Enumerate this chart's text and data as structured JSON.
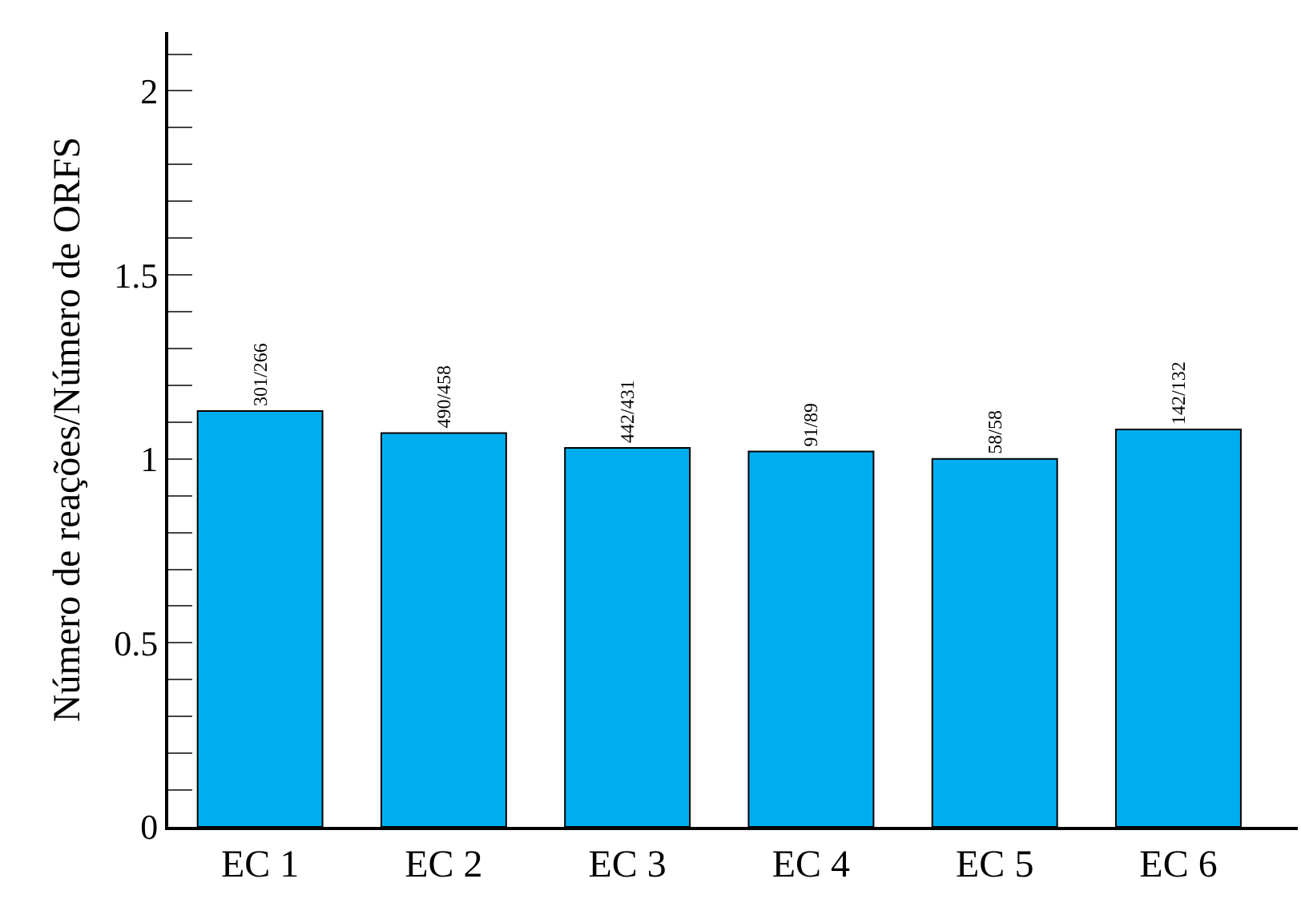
{
  "chart_data": {
    "type": "bar",
    "ylabel": "Número de reações/Número de ORFS",
    "categories": [
      "EC 1",
      "EC 2",
      "EC 3",
      "EC 4",
      "EC 5",
      "EC 6"
    ],
    "values": [
      1.13,
      1.07,
      1.03,
      1.02,
      1.0,
      1.08
    ],
    "value_labels": [
      "301/266",
      "490/458",
      "442/431",
      "91/89",
      "58/58",
      "142/132"
    ],
    "color": "#00aeef",
    "ylim": [
      0,
      2.16
    ],
    "yticks": [
      0,
      {
        "value": 0.1,
        "label": null
      },
      {
        "value": 0.2,
        "label": null
      },
      {
        "value": 0.3,
        "label": null
      },
      {
        "value": 0.4,
        "label": null
      },
      0.5,
      {
        "value": 0.6,
        "label": null
      },
      {
        "value": 0.7,
        "label": null
      },
      {
        "value": 0.8,
        "label": null
      },
      {
        "value": 0.9,
        "label": null
      },
      1,
      {
        "value": 1.1,
        "label": null
      },
      {
        "value": 1.2,
        "label": null
      },
      {
        "value": 1.3,
        "label": null
      },
      {
        "value": 1.4,
        "label": null
      },
      1.5,
      {
        "value": 1.6,
        "label": null
      },
      {
        "value": 1.7,
        "label": null
      },
      {
        "value": 1.8,
        "label": null
      },
      {
        "value": 1.9,
        "label": null
      },
      2,
      {
        "value": 2.1,
        "label": null
      }
    ],
    "grid": false,
    "legend": false
  }
}
